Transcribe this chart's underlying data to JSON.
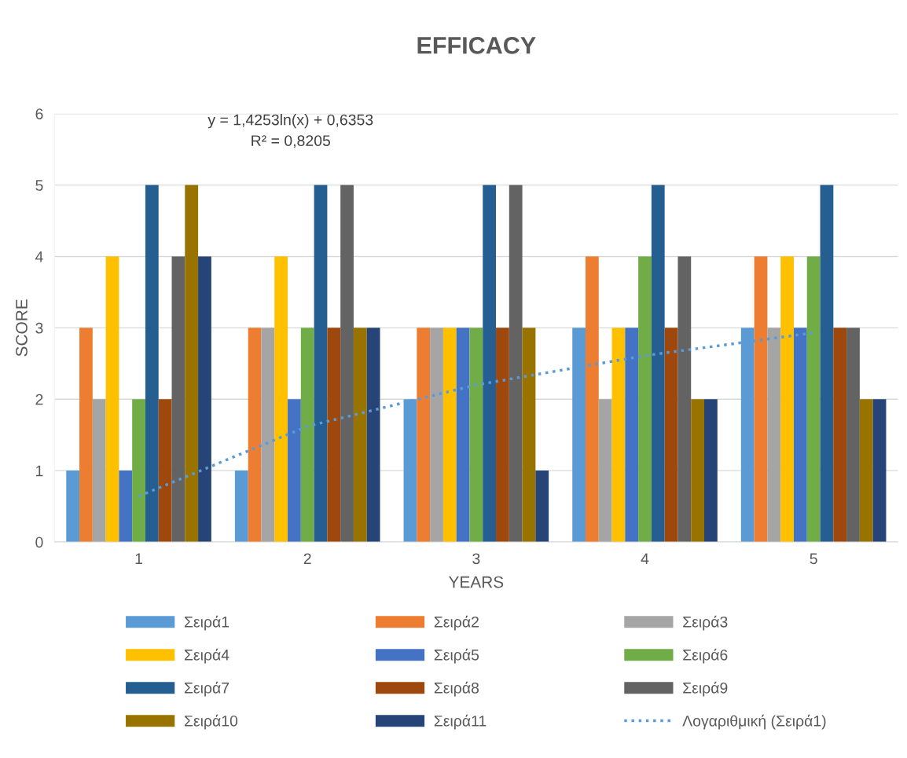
{
  "chart_data": {
    "type": "bar",
    "title": "EFFICACY",
    "xlabel": "YEARS",
    "ylabel": "SCORE",
    "categories": [
      "1",
      "2",
      "3",
      "4",
      "5"
    ],
    "ylim": [
      0,
      6
    ],
    "yticks": [
      0,
      1,
      2,
      3,
      4,
      5,
      6
    ],
    "grid": "y",
    "legend": "bottom",
    "annotations": [
      "y = 1,4253ln(x) + 0,6353\nR² = 0,8205"
    ],
    "series": [
      {
        "name": "Σειρά1",
        "color": "#5b9bd5",
        "values": [
          1,
          1,
          2,
          3,
          3
        ]
      },
      {
        "name": "Σειρά2",
        "color": "#ed7d31",
        "values": [
          3,
          3,
          3,
          4,
          4
        ]
      },
      {
        "name": "Σειρά3",
        "color": "#a5a5a5",
        "values": [
          2,
          3,
          3,
          2,
          3
        ]
      },
      {
        "name": "Σειρά4",
        "color": "#ffc000",
        "values": [
          4,
          4,
          3,
          3,
          4
        ]
      },
      {
        "name": "Σειρά5",
        "color": "#4472c4",
        "values": [
          1,
          2,
          3,
          3,
          3
        ]
      },
      {
        "name": "Σειρά6",
        "color": "#70ad47",
        "values": [
          2,
          3,
          3,
          4,
          4
        ]
      },
      {
        "name": "Σειρά7",
        "color": "#255e91",
        "values": [
          5,
          5,
          5,
          5,
          5
        ]
      },
      {
        "name": "Σειρά8",
        "color": "#9e480e",
        "values": [
          2,
          3,
          3,
          3,
          3
        ]
      },
      {
        "name": "Σειρά9",
        "color": "#636363",
        "values": [
          4,
          5,
          5,
          4,
          3
        ]
      },
      {
        "name": "Σειρά10",
        "color": "#997300",
        "values": [
          5,
          3,
          3,
          2,
          2
        ]
      },
      {
        "name": "Σειρά11",
        "color": "#264478",
        "values": [
          4,
          3,
          1,
          2,
          2
        ]
      },
      {
        "name": "Λογαριθμική (Σειρά1)",
        "type": "line",
        "line_style": "dotted",
        "marker": "none",
        "color": "#5b9bd5",
        "x": [
          "1",
          "2",
          "3",
          "4",
          "5"
        ],
        "values": [
          0.64,
          1.62,
          2.2,
          2.61,
          2.93
        ]
      }
    ]
  }
}
